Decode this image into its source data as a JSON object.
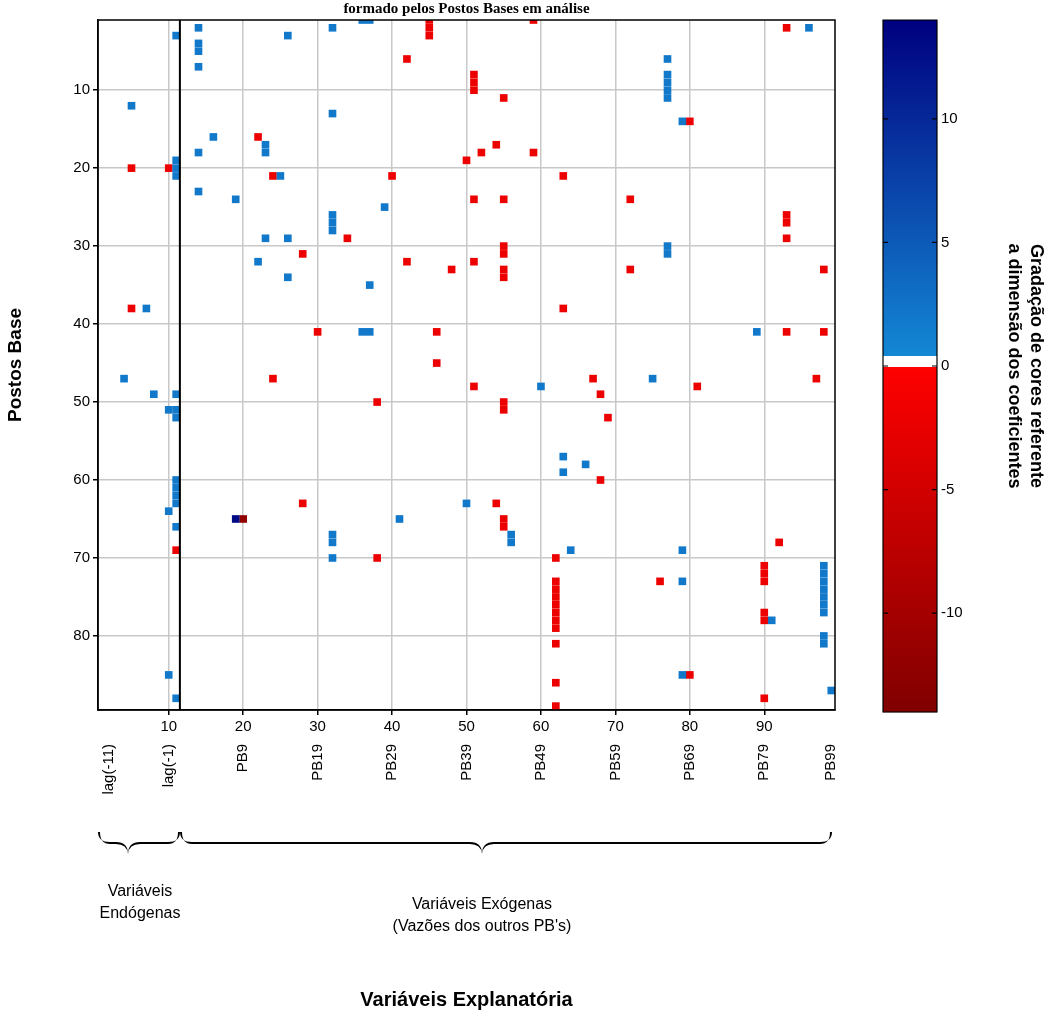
{
  "chart_data": {
    "type": "scatter",
    "title": "formado pelos Postos Bases em análise",
    "ylabel": "Postos Base",
    "clabel": "Gradação de cores referente\na dimensão dos coeficientes",
    "annotations": [
      "Variáveis\nEndógenas",
      "Variáveis Exógenas\n(Vazões dos outros PB's)",
      "lag(-11)",
      "lag(-1)",
      "PB9",
      "PB19",
      "PB29",
      "PB39",
      "PB49",
      "PB59",
      "PB69",
      "PB79",
      "PB99",
      "Variáveis Explanatória"
    ],
    "marker": "square",
    "grid": true,
    "xlim": [
      0.5,
      99.5
    ],
    "xticks": [
      10,
      20,
      30,
      40,
      50,
      60,
      70,
      80,
      90
    ],
    "ylim": [
      89.5,
      1
    ],
    "yticks": [
      10,
      20,
      30,
      40,
      50,
      60,
      70,
      80
    ],
    "clim": [
      -14,
      14
    ],
    "cticks": [
      -10,
      -5,
      0,
      5,
      10
    ],
    "ref_lines": [
      {
        "axis": "x",
        "value": 11.5,
        "color": "#000000"
      }
    ],
    "series": [
      {
        "x": [
          11,
          14,
          14,
          14,
          14,
          26,
          32,
          5,
          32,
          16,
          23,
          23,
          14,
          11,
          11,
          11,
          25,
          14,
          19,
          32,
          32,
          32,
          23,
          26,
          22,
          26,
          7,
          36,
          37,
          39,
          37,
          36,
          37,
          96,
          77,
          77,
          77,
          77,
          77,
          79,
          77,
          77,
          89,
          4,
          8,
          11,
          10,
          11,
          11,
          11,
          11,
          11,
          11,
          10,
          11,
          32,
          32,
          32,
          10,
          11,
          60,
          63,
          63,
          66,
          50,
          41,
          56,
          56,
          64,
          75,
          79,
          79,
          91,
          98,
          98,
          98,
          98,
          98,
          98,
          98,
          98,
          98,
          79,
          99
        ],
        "values": [
          3,
          2,
          4,
          5,
          7,
          3,
          2,
          12,
          13,
          16,
          17,
          18,
          18,
          19,
          20,
          21,
          21,
          23,
          24,
          26,
          27,
          28,
          29,
          29,
          32,
          34,
          38,
          1,
          1,
          25,
          35,
          41,
          41,
          2,
          6,
          8,
          9,
          10,
          11,
          14,
          30,
          31,
          41,
          47,
          49,
          49,
          51,
          51,
          52,
          60,
          61,
          62,
          63,
          64,
          66,
          67,
          68,
          70,
          85,
          88,
          48,
          57,
          59,
          58,
          63,
          65,
          67,
          68,
          69,
          47,
          69,
          73,
          78,
          71,
          72,
          73,
          74,
          75,
          76,
          77,
          80,
          81,
          85,
          87
        ],
        "cvalues": [
          2,
          2,
          2,
          2,
          2,
          2,
          2,
          2,
          2,
          2,
          2,
          2,
          2,
          2,
          2,
          2,
          2,
          2,
          2,
          2,
          2,
          2,
          2,
          2,
          2,
          2,
          2,
          2,
          2,
          2,
          2,
          2,
          2,
          2,
          2,
          2,
          2,
          2,
          2,
          2,
          2,
          2,
          2,
          2,
          2,
          2,
          2,
          2,
          2,
          2,
          2,
          2,
          2,
          2,
          2,
          2,
          2,
          2,
          2,
          2,
          2,
          2,
          2,
          2,
          2,
          2,
          2,
          2,
          2,
          2,
          2,
          2,
          2,
          2,
          2,
          2,
          2,
          2,
          2,
          2,
          2,
          2,
          2,
          2
        ]
      },
      {
        "x": [
          19
        ],
        "values": [
          65
        ],
        "cvalues": [
          13
        ]
      },
      {
        "x": [
          22,
          5,
          10,
          24,
          28,
          5,
          30,
          45,
          45,
          45,
          59,
          42,
          51,
          51,
          51,
          55,
          54,
          52,
          59,
          50,
          40,
          63,
          51,
          55,
          34,
          55,
          55,
          42,
          48,
          51,
          55,
          55,
          63,
          46,
          46,
          93,
          80,
          72,
          93,
          93,
          93,
          72,
          98,
          93,
          98,
          24,
          11,
          28,
          38,
          51,
          55,
          55,
          54,
          55,
          55,
          38,
          62,
          62,
          62,
          62,
          62,
          62,
          62,
          62,
          62,
          62,
          62,
          67,
          68,
          81,
          97,
          69,
          68,
          92,
          76,
          90,
          90,
          90,
          90,
          90,
          80,
          90
        ],
        "values": [
          16,
          20,
          20,
          21,
          31,
          38,
          41,
          1,
          2,
          3,
          1,
          6,
          8,
          9,
          10,
          11,
          17,
          18,
          18,
          19,
          21,
          21,
          24,
          24,
          29,
          30,
          31,
          32,
          33,
          32,
          33,
          34,
          38,
          41,
          45,
          2,
          14,
          24,
          26,
          27,
          29,
          33,
          33,
          41,
          41,
          47,
          69,
          63,
          50,
          48,
          50,
          51,
          63,
          65,
          66,
          70,
          70,
          73,
          74,
          75,
          76,
          77,
          78,
          79,
          81,
          86,
          89,
          47,
          49,
          48,
          47,
          52,
          60,
          68,
          73,
          71,
          72,
          73,
          77,
          78,
          85,
          88
        ],
        "cvalues": [
          -2,
          -2,
          -2,
          -2,
          -2,
          -2,
          -2,
          -2,
          -2,
          -2,
          -2,
          -2,
          -2,
          -2,
          -2,
          -2,
          -2,
          -2,
          -2,
          -2,
          -2,
          -2,
          -2,
          -2,
          -2,
          -2,
          -2,
          -2,
          -2,
          -2,
          -2,
          -2,
          -2,
          -2,
          -2,
          -2,
          -2,
          -2,
          -2,
          -2,
          -2,
          -2,
          -2,
          -2,
          -2,
          -2,
          -2,
          -2,
          -2,
          -2,
          -2,
          -2,
          -2,
          -2,
          -2,
          -2,
          -2,
          -2,
          -2,
          -2,
          -2,
          -2,
          -2,
          -2,
          -2,
          -2,
          -2,
          -2,
          -2,
          -2,
          -2,
          -2,
          -2,
          -2,
          -2,
          -2,
          -2,
          -2,
          -2,
          -2,
          -2,
          -2
        ]
      },
      {
        "x": [
          20
        ],
        "values": [
          65
        ],
        "cvalues": [
          -12
        ]
      }
    ]
  }
}
